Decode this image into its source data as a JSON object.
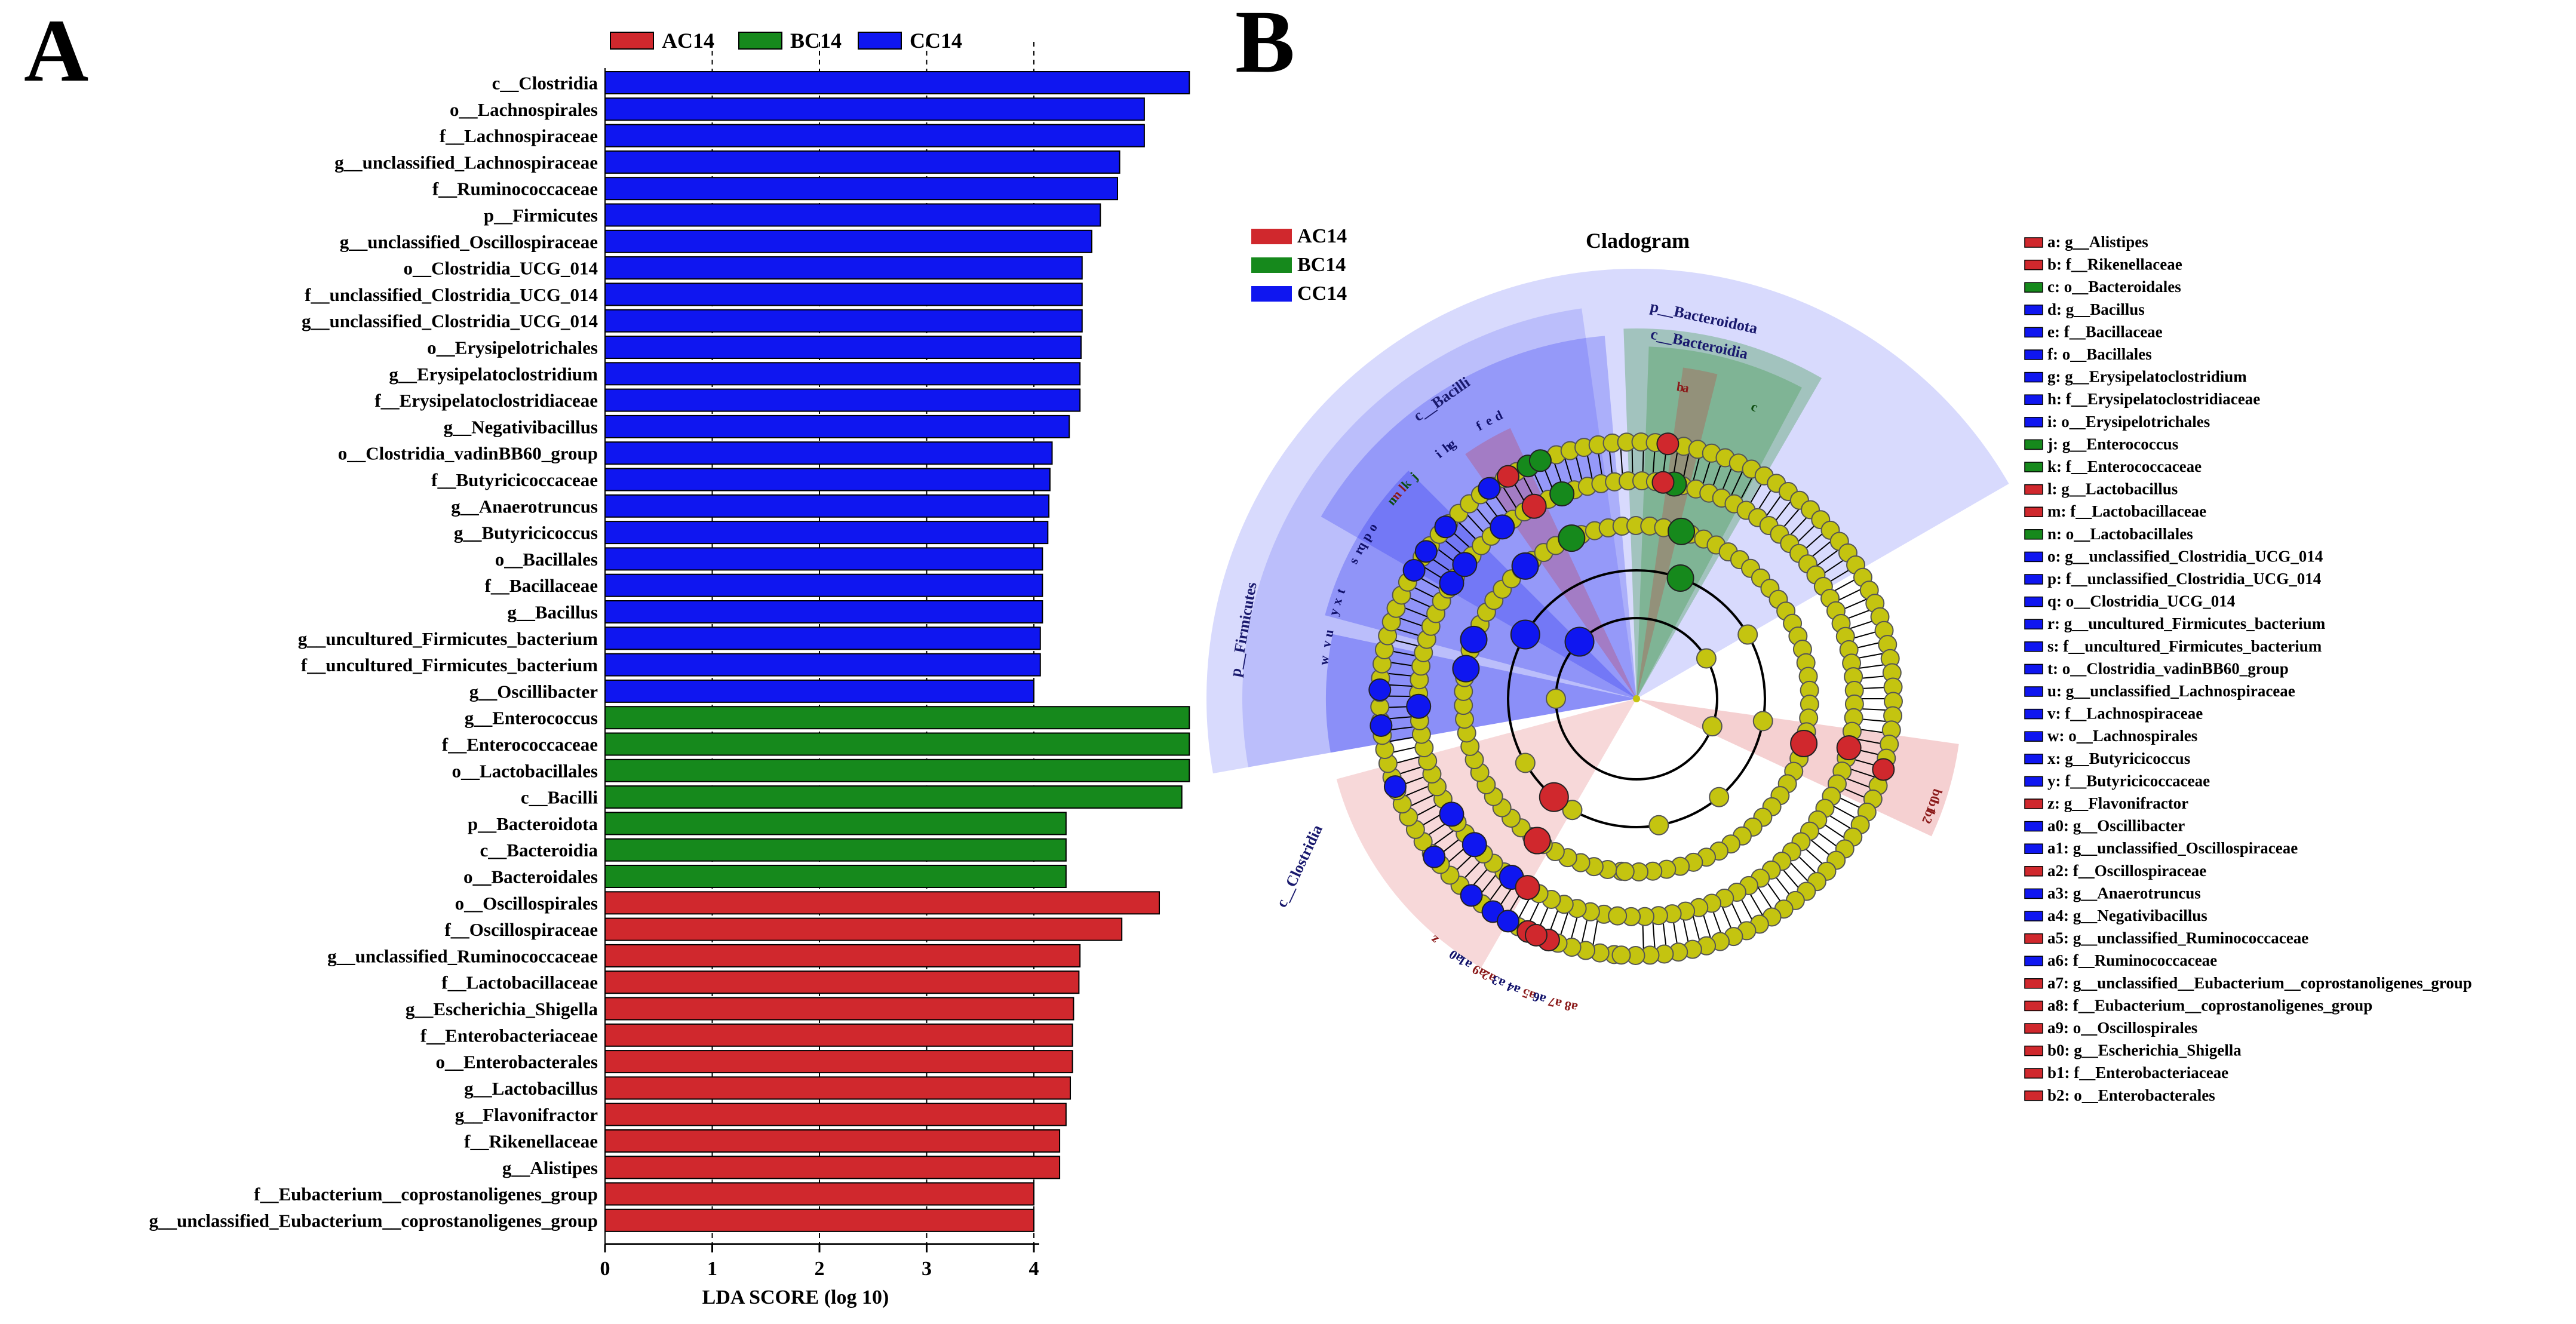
{
  "colors": {
    "AC14": "#d0282d",
    "BC14": "#16891c",
    "CC14": "#0f16f0",
    "node": "#c4c410"
  },
  "panels": {
    "a": "A",
    "b": "B"
  },
  "chart_data": [
    {
      "type": "bar",
      "orientation": "horizontal",
      "xlabel": "LDA SCORE (log 10)",
      "xlim": [
        0,
        5.5
      ],
      "xticks": [
        "0",
        "1",
        "2",
        "3",
        "4"
      ],
      "legend": [
        {
          "name": "AC14"
        },
        {
          "name": "BC14"
        },
        {
          "name": "CC14"
        }
      ],
      "legend_position": "top",
      "grid": "dashed vertical lines at x=1,2,3,4",
      "bars": [
        {
          "label": "c__Clostridia",
          "value": 5.45,
          "group": "CC14"
        },
        {
          "label": "o__Lachnospirales",
          "value": 5.03,
          "group": "CC14"
        },
        {
          "label": "f__Lachnospiraceae",
          "value": 5.03,
          "group": "CC14"
        },
        {
          "label": "g__unclassified_Lachnospiraceae",
          "value": 4.8,
          "group": "CC14"
        },
        {
          "label": "f__Ruminococcaceae",
          "value": 4.78,
          "group": "CC14"
        },
        {
          "label": "p__Firmicutes",
          "value": 4.62,
          "group": "CC14"
        },
        {
          "label": "g__unclassified_Oscillospiraceae",
          "value": 4.54,
          "group": "CC14"
        },
        {
          "label": "o__Clostridia_UCG_014",
          "value": 4.45,
          "group": "CC14"
        },
        {
          "label": "f__unclassified_Clostridia_UCG_014",
          "value": 4.45,
          "group": "CC14"
        },
        {
          "label": "g__unclassified_Clostridia_UCG_014",
          "value": 4.45,
          "group": "CC14"
        },
        {
          "label": "o__Erysipelotrichales",
          "value": 4.44,
          "group": "CC14"
        },
        {
          "label": "g__Erysipelatoclostridium",
          "value": 4.43,
          "group": "CC14"
        },
        {
          "label": "f__Erysipelatoclostridiaceae",
          "value": 4.43,
          "group": "CC14"
        },
        {
          "label": "g__Negativibacillus",
          "value": 4.33,
          "group": "CC14"
        },
        {
          "label": "o__Clostridia_vadinBB60_group",
          "value": 4.17,
          "group": "CC14"
        },
        {
          "label": "f__Butyricicoccaceae",
          "value": 4.15,
          "group": "CC14"
        },
        {
          "label": "g__Anaerotruncus",
          "value": 4.14,
          "group": "CC14"
        },
        {
          "label": "g__Butyricicoccus",
          "value": 4.13,
          "group": "CC14"
        },
        {
          "label": "o__Bacillales",
          "value": 4.08,
          "group": "CC14"
        },
        {
          "label": "f__Bacillaceae",
          "value": 4.08,
          "group": "CC14"
        },
        {
          "label": "g__Bacillus",
          "value": 4.08,
          "group": "CC14"
        },
        {
          "label": "g__uncultured_Firmicutes_bacterium",
          "value": 4.06,
          "group": "CC14"
        },
        {
          "label": "f__uncultured_Firmicutes_bacterium",
          "value": 4.06,
          "group": "CC14"
        },
        {
          "label": "g__Oscillibacter",
          "value": 4.0,
          "group": "CC14"
        },
        {
          "label": "g__Enterococcus",
          "value": 5.45,
          "group": "BC14"
        },
        {
          "label": "f__Enterococcaceae",
          "value": 5.45,
          "group": "BC14"
        },
        {
          "label": "o__Lactobacillales",
          "value": 5.45,
          "group": "BC14"
        },
        {
          "label": "c__Bacilli",
          "value": 5.38,
          "group": "BC14"
        },
        {
          "label": "p__Bacteroidota",
          "value": 4.3,
          "group": "BC14"
        },
        {
          "label": "c__Bacteroidia",
          "value": 4.3,
          "group": "BC14"
        },
        {
          "label": "o__Bacteroidales",
          "value": 4.3,
          "group": "BC14"
        },
        {
          "label": "o__Oscillospirales",
          "value": 5.17,
          "group": "AC14"
        },
        {
          "label": "f__Oscillospiraceae",
          "value": 4.82,
          "group": "AC14"
        },
        {
          "label": "g__unclassified_Ruminococcaceae",
          "value": 4.43,
          "group": "AC14"
        },
        {
          "label": "f__Lactobacillaceae",
          "value": 4.42,
          "group": "AC14"
        },
        {
          "label": "g__Escherichia_Shigella",
          "value": 4.37,
          "group": "AC14"
        },
        {
          "label": "f__Enterobacteriaceae",
          "value": 4.36,
          "group": "AC14"
        },
        {
          "label": "o__Enterobacterales",
          "value": 4.36,
          "group": "AC14"
        },
        {
          "label": "g__Lactobacillus",
          "value": 4.34,
          "group": "AC14"
        },
        {
          "label": "g__Flavonifractor",
          "value": 4.3,
          "group": "AC14"
        },
        {
          "label": "f__Rikenellaceae",
          "value": 4.24,
          "group": "AC14"
        },
        {
          "label": "g__Alistipes",
          "value": 4.24,
          "group": "AC14"
        },
        {
          "label": "f__Eubacterium__coprostanoligenes_group",
          "value": 4.0,
          "group": "AC14"
        },
        {
          "label": "g__unclassified_Eubacterium__coprostanoligenes_group",
          "value": 4.0,
          "group": "AC14"
        }
      ]
    },
    {
      "type": "cladogram",
      "title": "Cladogram",
      "legend": [
        {
          "name": "AC14"
        },
        {
          "name": "BC14"
        },
        {
          "name": "CC14"
        }
      ],
      "legend_position": "top-left",
      "sector_labels": [
        {
          "text": "p__Bacteroidota",
          "group": "BC14"
        },
        {
          "text": "c__Bacteroidia",
          "group": "BC14"
        },
        {
          "text": "c__Bacilli",
          "group": "BC14"
        },
        {
          "text": "p__Firmicutes",
          "group": "CC14"
        },
        {
          "text": "c__Clostridia",
          "group": "CC14"
        }
      ],
      "wedge_letters": [
        "a",
        "b",
        "c",
        "d",
        "e",
        "f",
        "g",
        "h",
        "i",
        "j",
        "k",
        "l",
        "m",
        "n",
        "o",
        "p",
        "q",
        "r",
        "s",
        "t",
        "u",
        "v",
        "w",
        "x",
        "y",
        "z",
        "a0",
        "a1",
        "a2",
        "a3",
        "a4",
        "a5",
        "a6",
        "a7",
        "a8",
        "a9",
        "b0",
        "b1",
        "b2"
      ],
      "key": [
        {
          "code": "a",
          "name": "g__Alistipes",
          "group": "AC14"
        },
        {
          "code": "b",
          "name": "f__Rikenellaceae",
          "group": "AC14"
        },
        {
          "code": "c",
          "name": "o__Bacteroidales",
          "group": "BC14"
        },
        {
          "code": "d",
          "name": "g__Bacillus",
          "group": "CC14"
        },
        {
          "code": "e",
          "name": "f__Bacillaceae",
          "group": "CC14"
        },
        {
          "code": "f",
          "name": "o__Bacillales",
          "group": "CC14"
        },
        {
          "code": "g",
          "name": "g__Erysipelatoclostridium",
          "group": "CC14"
        },
        {
          "code": "h",
          "name": "f__Erysipelatoclostridiaceae",
          "group": "CC14"
        },
        {
          "code": "i",
          "name": "o__Erysipelotrichales",
          "group": "CC14"
        },
        {
          "code": "j",
          "name": "g__Enterococcus",
          "group": "BC14"
        },
        {
          "code": "k",
          "name": "f__Enterococcaceae",
          "group": "BC14"
        },
        {
          "code": "l",
          "name": "g__Lactobacillus",
          "group": "AC14"
        },
        {
          "code": "m",
          "name": "f__Lactobacillaceae",
          "group": "AC14"
        },
        {
          "code": "n",
          "name": "o__Lactobacillales",
          "group": "BC14"
        },
        {
          "code": "o",
          "name": "g__unclassified_Clostridia_UCG_014",
          "group": "CC14"
        },
        {
          "code": "p",
          "name": "f__unclassified_Clostridia_UCG_014",
          "group": "CC14"
        },
        {
          "code": "q",
          "name": "o__Clostridia_UCG_014",
          "group": "CC14"
        },
        {
          "code": "r",
          "name": "g__uncultured_Firmicutes_bacterium",
          "group": "CC14"
        },
        {
          "code": "s",
          "name": "f__uncultured_Firmicutes_bacterium",
          "group": "CC14"
        },
        {
          "code": "t",
          "name": "o__Clostridia_vadinBB60_group",
          "group": "CC14"
        },
        {
          "code": "u",
          "name": "g__unclassified_Lachnospiraceae",
          "group": "CC14"
        },
        {
          "code": "v",
          "name": "f__Lachnospiraceae",
          "group": "CC14"
        },
        {
          "code": "w",
          "name": "o__Lachnospirales",
          "group": "CC14"
        },
        {
          "code": "x",
          "name": "g__Butyricicoccus",
          "group": "CC14"
        },
        {
          "code": "y",
          "name": "f__Butyricicoccaceae",
          "group": "CC14"
        },
        {
          "code": "z",
          "name": "g__Flavonifractor",
          "group": "AC14"
        },
        {
          "code": "a0",
          "name": "g__Oscillibacter",
          "group": "CC14"
        },
        {
          "code": "a1",
          "name": "g__unclassified_Oscillospiraceae",
          "group": "CC14"
        },
        {
          "code": "a2",
          "name": "f__Oscillospiraceae",
          "group": "AC14"
        },
        {
          "code": "a3",
          "name": "g__Anaerotruncus",
          "group": "CC14"
        },
        {
          "code": "a4",
          "name": "g__Negativibacillus",
          "group": "CC14"
        },
        {
          "code": "a5",
          "name": "g__unclassified_Ruminococcaceae",
          "group": "AC14"
        },
        {
          "code": "a6",
          "name": "f__Ruminococcaceae",
          "group": "CC14"
        },
        {
          "code": "a7",
          "name": "g__unclassified__Eubacterium__coprostanoligenes_group",
          "group": "AC14"
        },
        {
          "code": "a8",
          "name": "f__Eubacterium__coprostanoligenes_group",
          "group": "AC14"
        },
        {
          "code": "a9",
          "name": "o__Oscillospirales",
          "group": "AC14"
        },
        {
          "code": "b0",
          "name": "g__Escherichia_Shigella",
          "group": "AC14"
        },
        {
          "code": "b1",
          "name": "f__Enterobacteriaceae",
          "group": "AC14"
        },
        {
          "code": "b2",
          "name": "o__Enterobacterales",
          "group": "AC14"
        }
      ]
    }
  ]
}
